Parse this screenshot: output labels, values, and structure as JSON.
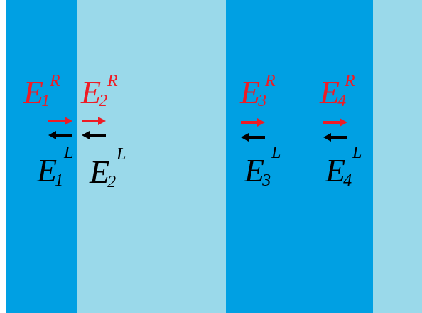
{
  "colors": {
    "dark_blue": "#00A0E3",
    "light_blue": "#9AD9EA",
    "right_wave": "#EE1C25",
    "left_wave": "#000000"
  },
  "bands": [
    {
      "color": "#00A0E3"
    },
    {
      "color": "#9AD9EA"
    },
    {
      "color": "#00A0E3"
    },
    {
      "color": "#9AD9EA"
    }
  ],
  "fields": [
    {
      "right": {
        "base": "E",
        "sub": "1",
        "sup": "R"
      },
      "left": {
        "base": "E",
        "sub": "1",
        "sup": "L"
      }
    },
    {
      "right": {
        "base": "E",
        "sub": "2",
        "sup": "R"
      },
      "left": {
        "base": "E",
        "sub": "2",
        "sup": "L"
      }
    },
    {
      "right": {
        "base": "E",
        "sub": "3",
        "sup": "R"
      },
      "left": {
        "base": "E",
        "sub": "3",
        "sup": "L"
      }
    },
    {
      "right": {
        "base": "E",
        "sub": "4",
        "sup": "R"
      },
      "left": {
        "base": "E",
        "sub": "4",
        "sup": "L"
      }
    }
  ],
  "icons": {
    "right_arrow": "right-arrow-icon",
    "left_arrow": "left-arrow-icon"
  }
}
